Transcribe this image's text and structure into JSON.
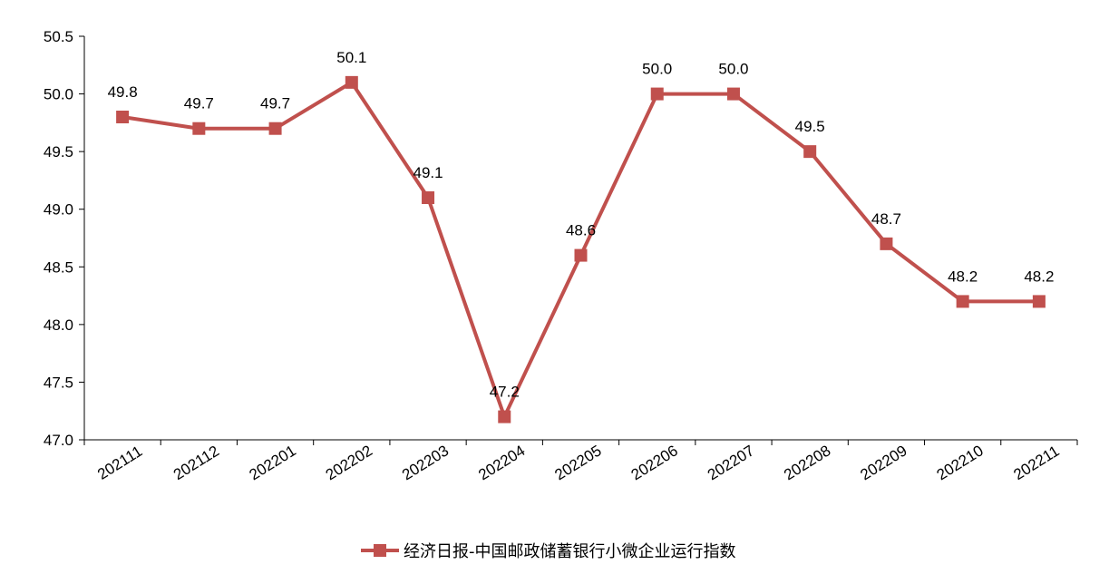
{
  "chart_data": {
    "type": "line",
    "categories": [
      "202111",
      "202112",
      "202201",
      "202202",
      "202203",
      "202204",
      "202205",
      "202206",
      "202207",
      "202208",
      "202209",
      "202210",
      "202211"
    ],
    "series": [
      {
        "name": "经济日报-中国邮政储蓄银行小微企业运行指数",
        "values": [
          49.8,
          49.7,
          49.7,
          50.1,
          49.1,
          47.2,
          48.6,
          50.0,
          50.0,
          49.5,
          48.7,
          48.2,
          48.2
        ],
        "color": "#c0504d"
      }
    ],
    "ylim": [
      47.0,
      50.5
    ],
    "y_ticks": [
      "47.0",
      "47.5",
      "48.0",
      "48.5",
      "49.0",
      "49.5",
      "50.0",
      "50.5"
    ],
    "data_labels": [
      "49.8",
      "49.7",
      "49.7",
      "50.1",
      "49.1",
      "47.2",
      "48.6",
      "50.0",
      "50.0",
      "49.5",
      "48.7",
      "48.2",
      "48.2"
    ],
    "grid": false,
    "legend_position": "bottom",
    "title": "",
    "xlabel": "",
    "ylabel": ""
  }
}
